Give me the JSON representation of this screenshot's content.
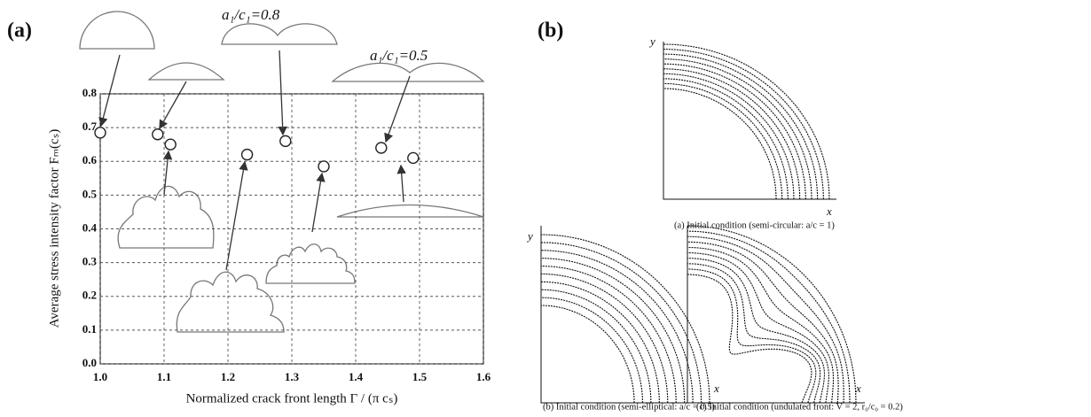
{
  "chart_data": {
    "type": "scatter",
    "panel_label": "(a)",
    "y_label": "Average stress intensity factor  Fₘ(cₛ)",
    "x_label": "Normalized crack front length Γ / (π cₛ)",
    "annotations": [
      "a₁/c₁=0.8",
      "a₁/c₁=0.5"
    ],
    "x": [
      1.0,
      1.09,
      1.11,
      1.23,
      1.29,
      1.35,
      1.44,
      1.49
    ],
    "values": [
      0.685,
      0.68,
      0.65,
      0.62,
      0.66,
      0.585,
      0.64,
      0.61
    ],
    "color": "#222222",
    "xlim": [
      1.0,
      1.6
    ],
    "ylim": [
      0,
      0.8
    ],
    "xticks": [
      {
        "value": 1,
        "label": "1.0"
      },
      1.1,
      1.2,
      1.3,
      1.4,
      1.5,
      1.6
    ],
    "yticks": [
      {
        "value": 0,
        "label": "0.0"
      },
      0.1,
      0.2,
      0.3,
      0.4,
      0.5,
      0.6,
      0.7,
      0.8
    ],
    "grid": true
  },
  "panel_b": {
    "panel_label": "(b)",
    "subplots": [
      {
        "x_label": "x",
        "y_label": "y",
        "caption": "(a)   Initial condition (semi-circular: a/c = 1)"
      },
      {
        "x_label": "x",
        "y_label": "y",
        "caption": "(b)   Initial condition (semi-elliptical: a/c = 0.5)"
      },
      {
        "x_label": "x",
        "caption": "(c)   Initial condition (undulated front: V = 2, r₀/c₀ = 0.2)"
      }
    ]
  }
}
